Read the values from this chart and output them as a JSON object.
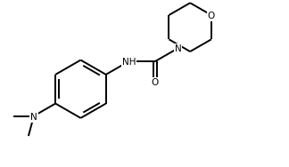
{
  "bg_color": "#ffffff",
  "line_color": "#000000",
  "text_color": "#000000",
  "line_width": 1.4,
  "font_size": 7.5,
  "figsize": [
    3.24,
    1.88
  ],
  "dpi": 100,
  "xlim": [
    0,
    10
  ],
  "ylim": [
    0,
    6
  ]
}
